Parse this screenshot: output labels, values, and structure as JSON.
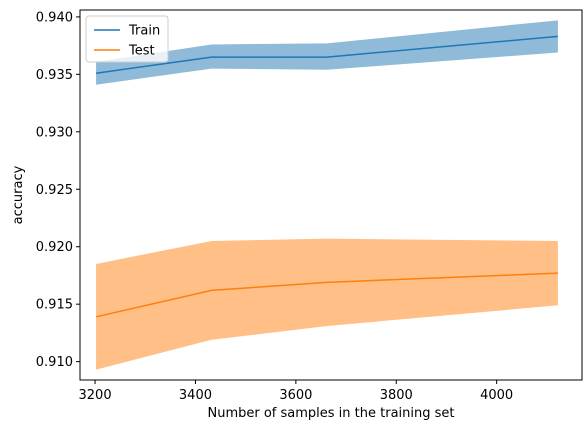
{
  "chart_data": {
    "type": "line",
    "xlabel": "Number of samples in the training set",
    "ylabel": "accuracy",
    "xlim": [
      3170,
      4170
    ],
    "ylim": [
      0.9084,
      0.9406
    ],
    "xticks": [
      3200,
      3400,
      3600,
      3800,
      4000
    ],
    "xtick_labels": [
      "3200",
      "3400",
      "3600",
      "3800",
      "4000"
    ],
    "yticks": [
      0.91,
      0.915,
      0.92,
      0.925,
      0.93,
      0.935,
      0.94
    ],
    "ytick_labels": [
      "0.910",
      "0.915",
      "0.920",
      "0.925",
      "0.930",
      "0.935",
      "0.940"
    ],
    "x": [
      3202,
      3432,
      3662,
      4122
    ],
    "series": [
      {
        "name": "Train",
        "color": "#1f77b4",
        "band_color": "#1f77b4",
        "values": [
          0.9351,
          0.9365,
          0.9365,
          0.9383
        ],
        "lower": [
          0.9341,
          0.9355,
          0.9354,
          0.9369
        ],
        "upper": [
          0.9361,
          0.9376,
          0.9377,
          0.9397
        ]
      },
      {
        "name": "Test",
        "color": "#ff7f0e",
        "band_color": "#ff7f0e",
        "values": [
          0.9139,
          0.9162,
          0.9169,
          0.9177
        ],
        "lower": [
          0.9093,
          0.9119,
          0.9131,
          0.9149
        ],
        "upper": [
          0.9185,
          0.9205,
          0.9207,
          0.9205
        ]
      }
    ],
    "legend_location": "top-left",
    "grid": false
  }
}
